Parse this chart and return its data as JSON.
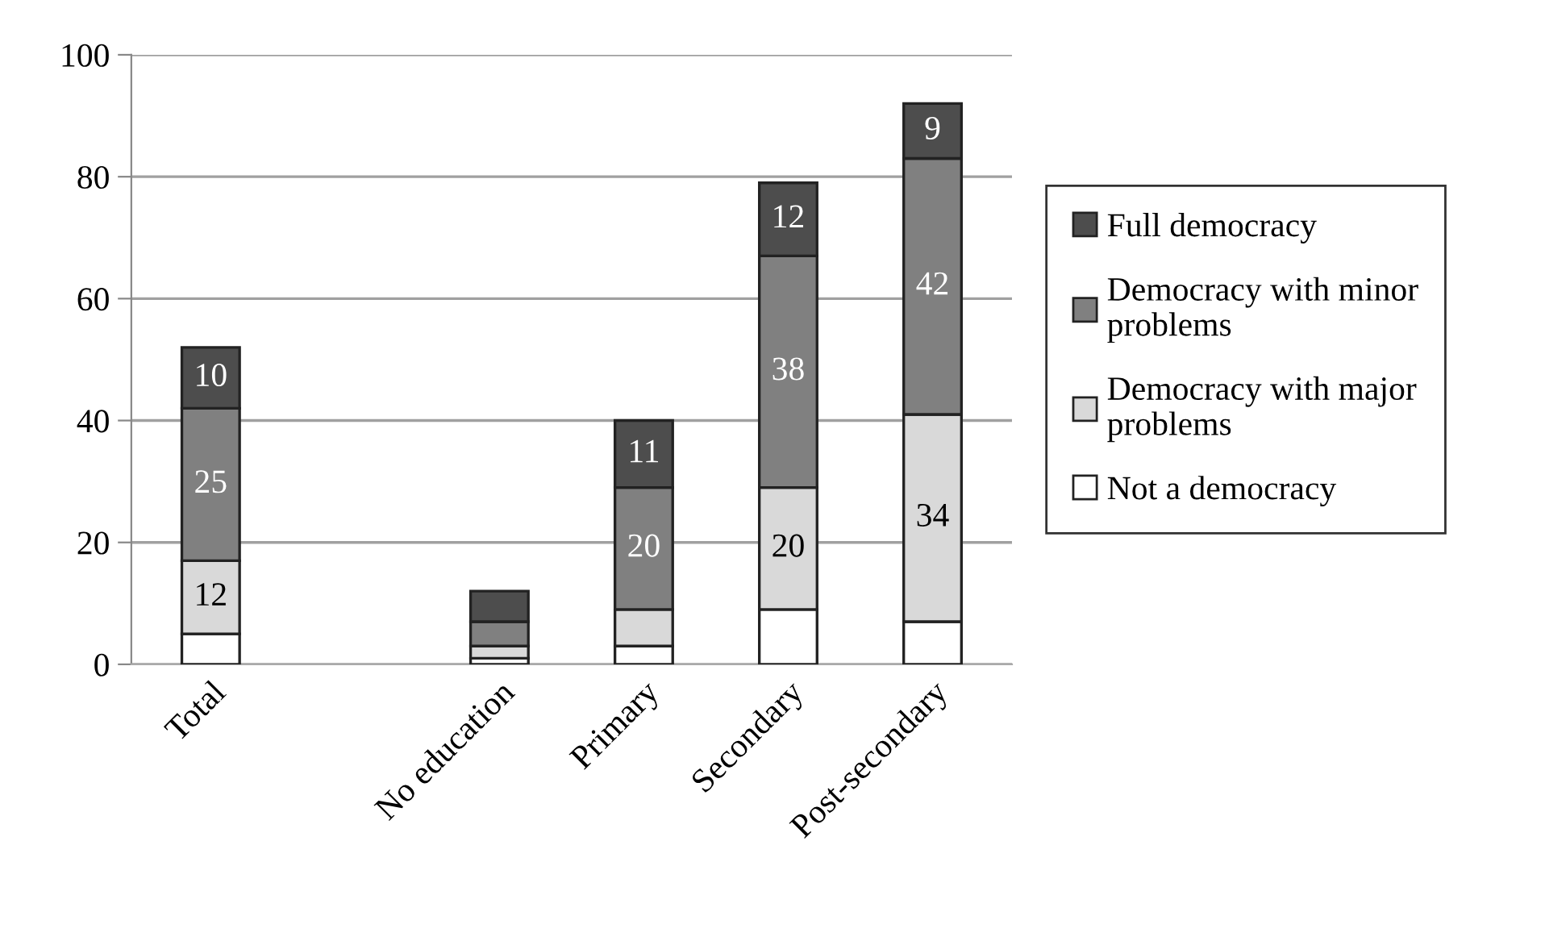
{
  "chart_data": {
    "type": "bar",
    "stacked": true,
    "categories": [
      "Total",
      null,
      "No education",
      "Primary",
      "Secondary",
      "Post-secondary"
    ],
    "series": [
      {
        "name": "Not a democracy",
        "color": "#ffffff",
        "values": [
          5,
          null,
          1,
          3,
          9,
          7
        ],
        "value_labels": [
          null,
          null,
          null,
          null,
          null,
          null
        ]
      },
      {
        "name": "Democracy with major\nproblems",
        "color": "#d9d9d9",
        "values": [
          12,
          null,
          2,
          6,
          20,
          34
        ],
        "value_labels": [
          "12",
          null,
          null,
          null,
          "20",
          "34"
        ]
      },
      {
        "name": "Democracy with minor\nproblems",
        "color": "#808080",
        "values": [
          25,
          null,
          4,
          20,
          38,
          42
        ],
        "value_labels": [
          "25",
          null,
          null,
          "20",
          "38",
          "42"
        ]
      },
      {
        "name": "Full democracy",
        "color": "#4d4d4d",
        "values": [
          10,
          null,
          5,
          11,
          12,
          9
        ],
        "value_labels": [
          "10",
          null,
          null,
          "11",
          "12",
          "9"
        ]
      }
    ],
    "ylim": [
      0,
      100
    ],
    "yticks": [
      0,
      20,
      40,
      60,
      80,
      100
    ],
    "grid": "y",
    "legend": "right"
  }
}
